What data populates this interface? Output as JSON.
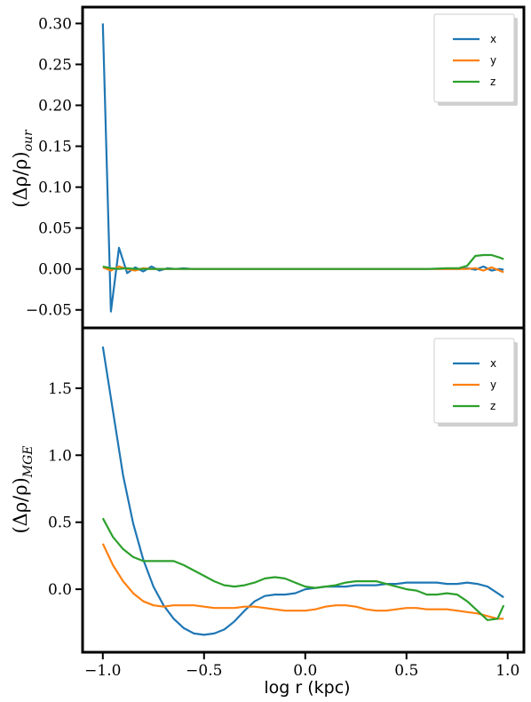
{
  "chart_data": [
    {
      "type": "line",
      "ylabel": "(Δρ/ρ)",
      "ylabel_subscript": "our",
      "xlim": [
        -1.1,
        1.08
      ],
      "ylim": [
        -0.072,
        0.32
      ],
      "yticks": [
        -0.05,
        0.0,
        0.05,
        0.1,
        0.15,
        0.2,
        0.25,
        0.3
      ],
      "ytick_labels": [
        "−0.05",
        "0.00",
        "0.05",
        "0.10",
        "0.15",
        "0.20",
        "0.25",
        "0.30"
      ],
      "legend_position": "top-right",
      "x": [
        -1.0,
        -0.96,
        -0.92,
        -0.88,
        -0.84,
        -0.8,
        -0.76,
        -0.72,
        -0.68,
        -0.64,
        -0.6,
        -0.56,
        -0.52,
        -0.48,
        -0.4,
        -0.3,
        -0.2,
        -0.1,
        0.0,
        0.1,
        0.2,
        0.3,
        0.4,
        0.5,
        0.6,
        0.7,
        0.76,
        0.8,
        0.84,
        0.88,
        0.92,
        0.96,
        0.98
      ],
      "series": [
        {
          "name": "x",
          "color": "#1f77b4",
          "values": [
            0.3,
            -0.052,
            0.026,
            -0.005,
            0.002,
            -0.003,
            0.003,
            -0.002,
            0.001,
            0.0,
            0.001,
            0.0,
            0.0,
            0.0,
            0.0,
            0.0,
            0.0,
            0.0,
            0.0,
            0.0,
            0.0,
            0.0,
            0.0,
            0.0,
            0.0,
            0.0,
            0.0,
            0.001,
            -0.001,
            0.003,
            -0.002,
            0.0,
            -0.001
          ]
        },
        {
          "name": "y",
          "color": "#ff7f0e",
          "values": [
            0.002,
            -0.002,
            0.003,
            0.0,
            -0.002,
            0.001,
            0.0,
            0.0,
            0.0,
            0.0,
            0.0,
            0.0,
            0.0,
            0.0,
            0.0,
            0.0,
            0.0,
            0.0,
            0.0,
            0.0,
            0.0,
            0.0,
            0.0,
            0.0,
            0.0,
            0.0,
            0.0,
            0.0,
            0.001,
            -0.002,
            0.002,
            -0.002,
            -0.004
          ]
        },
        {
          "name": "z",
          "color": "#2ca02c",
          "values": [
            0.003,
            0.001,
            0.0,
            0.001,
            0.0,
            0.0,
            0.0,
            0.0,
            0.0,
            0.0,
            0.0,
            0.0,
            0.0,
            0.0,
            0.0,
            0.0,
            0.0,
            0.0,
            0.0,
            0.0,
            0.0,
            0.0,
            0.0,
            0.0,
            0.0,
            0.001,
            0.001,
            0.004,
            0.016,
            0.017,
            0.017,
            0.014,
            0.012
          ]
        }
      ]
    },
    {
      "type": "line",
      "xlabel": "log r (kpc)",
      "ylabel": "(Δρ/ρ)",
      "ylabel_subscript": "MGE",
      "xlim": [
        -1.1,
        1.08
      ],
      "ylim": [
        -0.47,
        1.95
      ],
      "yticks": [
        0.0,
        0.5,
        1.0,
        1.5
      ],
      "ytick_labels": [
        "0.0",
        "0.5",
        "1.0",
        "1.5"
      ],
      "xticks": [
        -1.0,
        -0.5,
        0.0,
        0.5,
        1.0
      ],
      "xtick_labels": [
        "−1.0",
        "−0.5",
        "0.0",
        "0.5",
        "1.0"
      ],
      "legend_position": "top-right",
      "x": [
        -1.0,
        -0.95,
        -0.9,
        -0.85,
        -0.8,
        -0.75,
        -0.7,
        -0.65,
        -0.6,
        -0.55,
        -0.5,
        -0.45,
        -0.4,
        -0.35,
        -0.3,
        -0.25,
        -0.2,
        -0.15,
        -0.1,
        -0.05,
        0.0,
        0.05,
        0.1,
        0.15,
        0.2,
        0.25,
        0.3,
        0.35,
        0.4,
        0.45,
        0.5,
        0.55,
        0.6,
        0.65,
        0.7,
        0.75,
        0.8,
        0.85,
        0.9,
        0.95,
        0.98
      ],
      "series": [
        {
          "name": "x",
          "color": "#1f77b4",
          "values": [
            1.81,
            1.33,
            0.85,
            0.49,
            0.22,
            0.02,
            -0.12,
            -0.22,
            -0.29,
            -0.33,
            -0.34,
            -0.33,
            -0.3,
            -0.24,
            -0.16,
            -0.09,
            -0.05,
            -0.04,
            -0.04,
            -0.03,
            0.0,
            0.01,
            0.02,
            0.02,
            0.02,
            0.03,
            0.03,
            0.03,
            0.04,
            0.04,
            0.05,
            0.05,
            0.05,
            0.05,
            0.04,
            0.04,
            0.05,
            0.04,
            0.02,
            -0.03,
            -0.06
          ]
        },
        {
          "name": "y",
          "color": "#ff7f0e",
          "values": [
            0.34,
            0.18,
            0.06,
            -0.03,
            -0.09,
            -0.12,
            -0.13,
            -0.12,
            -0.12,
            -0.12,
            -0.13,
            -0.14,
            -0.14,
            -0.14,
            -0.13,
            -0.13,
            -0.14,
            -0.15,
            -0.16,
            -0.16,
            -0.16,
            -0.15,
            -0.13,
            -0.12,
            -0.12,
            -0.13,
            -0.15,
            -0.16,
            -0.16,
            -0.15,
            -0.14,
            -0.14,
            -0.15,
            -0.15,
            -0.15,
            -0.16,
            -0.17,
            -0.18,
            -0.2,
            -0.22,
            -0.22
          ]
        },
        {
          "name": "z",
          "color": "#2ca02c",
          "values": [
            0.53,
            0.39,
            0.3,
            0.24,
            0.21,
            0.21,
            0.21,
            0.21,
            0.18,
            0.14,
            0.1,
            0.06,
            0.03,
            0.02,
            0.03,
            0.05,
            0.08,
            0.09,
            0.08,
            0.05,
            0.02,
            0.01,
            0.02,
            0.03,
            0.05,
            0.06,
            0.06,
            0.06,
            0.04,
            0.02,
            0.0,
            -0.01,
            -0.04,
            -0.04,
            -0.03,
            -0.04,
            -0.09,
            -0.16,
            -0.23,
            -0.22,
            -0.12
          ]
        }
      ]
    }
  ],
  "legend_labels": [
    "x",
    "y",
    "z"
  ]
}
